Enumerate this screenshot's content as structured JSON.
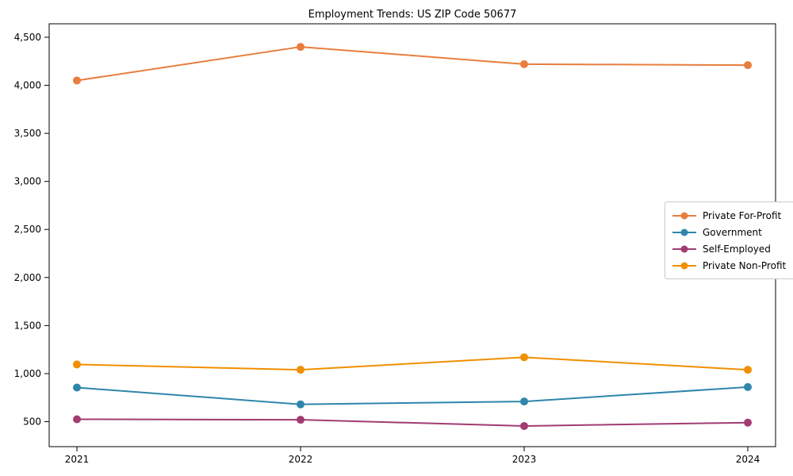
{
  "title": "Employment Trends: US ZIP Code 50677",
  "chart_data": {
    "type": "line",
    "title": "Employment Trends: US ZIP Code 50677",
    "xlabel": "",
    "ylabel": "",
    "categories": [
      "2021",
      "2022",
      "2023",
      "2024"
    ],
    "series": [
      {
        "name": "Private For-Profit",
        "color": "#e87d3e",
        "values": [
          4050,
          4400,
          4220,
          4210
        ]
      },
      {
        "name": "Government",
        "color": "#2e86ab",
        "values": [
          855,
          680,
          710,
          860
        ]
      },
      {
        "name": "Self-Employed",
        "color": "#a23b72",
        "values": [
          525,
          520,
          455,
          490
        ]
      },
      {
        "name": "Private Non-Profit",
        "color": "#f18f01",
        "values": [
          1095,
          1040,
          1170,
          1040
        ]
      }
    ],
    "ylim": [
      240,
      4640
    ],
    "yticks": [
      500,
      1000,
      1500,
      2000,
      2500,
      3000,
      3500,
      4000,
      4500
    ],
    "ytick_labels": [
      "500",
      "1,000",
      "1,500",
      "2,000",
      "2,500",
      "3,000",
      "3,500",
      "4,000",
      "4,500"
    ],
    "grid": false,
    "legend_position": "center-right",
    "line_width": 2,
    "marker": "circle"
  }
}
